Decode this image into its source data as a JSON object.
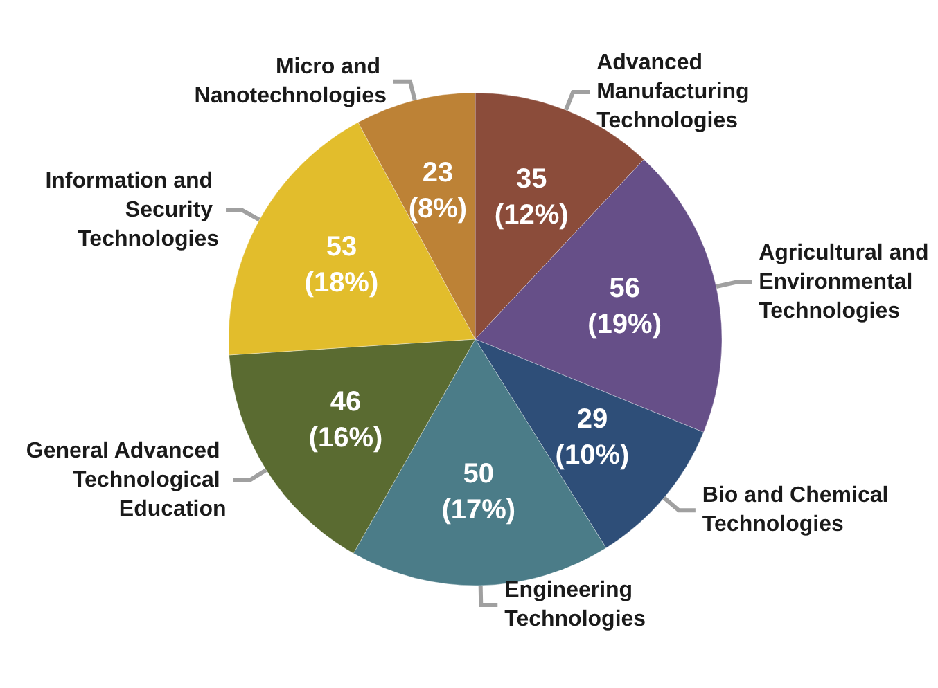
{
  "chart_data": {
    "type": "pie",
    "categories": [
      "Advanced Manufacturing Technologies",
      "Agricultural and Environmental Technologies",
      "Bio and Chemical Technologies",
      "Engineering Technologies",
      "General Advanced Technological Education",
      "Information and Security Technologies",
      "Micro and Nanotechnologies"
    ],
    "values": [
      35,
      56,
      29,
      50,
      46,
      53,
      23
    ],
    "value_labels": [
      "35\n(12%)",
      "56\n(19%)",
      "29\n(10%)",
      "50\n(17%)",
      "46\n(16%)",
      "53\n(18%)",
      "23\n(8%)"
    ],
    "colors": [
      "#8b4c3a",
      "#664f88",
      "#2e4e78",
      "#4b7c88",
      "#5a6b31",
      "#e2bd2c",
      "#bd8236"
    ],
    "legend": false
  }
}
